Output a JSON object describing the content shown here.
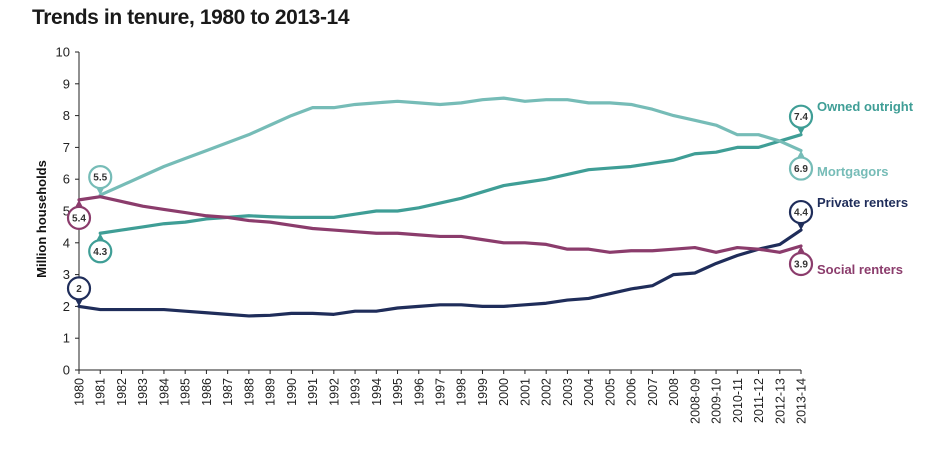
{
  "chart_data": {
    "type": "line",
    "title": "Trends in tenure, 1980 to 2013-14",
    "ylabel": "Million households",
    "xlabel": "",
    "ylim": [
      0,
      10
    ],
    "yticks": [
      0,
      1,
      2,
      3,
      4,
      5,
      6,
      7,
      8,
      9,
      10
    ],
    "grid": false,
    "legend": "right, direct labels",
    "categories": [
      "1980",
      "1981",
      "1982",
      "1983",
      "1984",
      "1985",
      "1986",
      "1987",
      "1988",
      "1989",
      "1990",
      "1991",
      "1992",
      "1993",
      "1994",
      "1995",
      "1996",
      "1997",
      "1998",
      "1999",
      "2000",
      "2001",
      "2002",
      "2003",
      "2004",
      "2005",
      "2006",
      "2007",
      "2008",
      "2008-09",
      "2009-10",
      "2010-11",
      "2011-12",
      "2012-13",
      "2013-14"
    ],
    "series": [
      {
        "name": "Owned outright",
        "color": "#3f9e96",
        "values": [
          null,
          4.3,
          4.4,
          4.5,
          4.6,
          4.65,
          4.75,
          4.8,
          4.85,
          4.82,
          4.8,
          4.8,
          4.8,
          4.9,
          5.0,
          5.0,
          5.1,
          5.25,
          5.4,
          5.6,
          5.8,
          5.9,
          6.0,
          6.15,
          6.3,
          6.35,
          6.4,
          6.5,
          6.6,
          6.8,
          6.85,
          7.0,
          7.0,
          7.2,
          7.4
        ],
        "start_label": "4.3",
        "end_label": "7.4"
      },
      {
        "name": "Mortgagors",
        "color": "#76bcb7",
        "values": [
          null,
          5.5,
          5.8,
          6.1,
          6.4,
          6.65,
          6.9,
          7.15,
          7.4,
          7.7,
          8.0,
          8.25,
          8.25,
          8.35,
          8.4,
          8.45,
          8.4,
          8.35,
          8.4,
          8.5,
          8.55,
          8.45,
          8.5,
          8.5,
          8.4,
          8.4,
          8.35,
          8.2,
          8.0,
          7.85,
          7.7,
          7.4,
          7.4,
          7.2,
          6.9
        ],
        "start_label": "5.5",
        "end_label": "6.9"
      },
      {
        "name": "Private renters",
        "color": "#1f2d5a",
        "values": [
          2.0,
          1.9,
          1.9,
          1.9,
          1.9,
          1.85,
          1.8,
          1.75,
          1.7,
          1.72,
          1.78,
          1.78,
          1.75,
          1.85,
          1.85,
          1.95,
          2.0,
          2.05,
          2.05,
          2.0,
          2.0,
          2.05,
          2.1,
          2.2,
          2.25,
          2.4,
          2.55,
          2.65,
          3.0,
          3.05,
          3.35,
          3.6,
          3.8,
          3.95,
          4.4
        ],
        "start_label": "2",
        "end_label": "4.4"
      },
      {
        "name": "Social renters",
        "color": "#8b3c6c",
        "values": [
          5.35,
          5.45,
          5.3,
          5.15,
          5.05,
          4.95,
          4.85,
          4.8,
          4.7,
          4.65,
          4.55,
          4.45,
          4.4,
          4.35,
          4.3,
          4.3,
          4.25,
          4.2,
          4.2,
          4.1,
          4.0,
          4.0,
          3.95,
          3.8,
          3.8,
          3.7,
          3.75,
          3.75,
          3.8,
          3.85,
          3.7,
          3.85,
          3.8,
          3.7,
          3.9
        ],
        "start_label": "5.4",
        "end_label": "3.9"
      }
    ]
  }
}
